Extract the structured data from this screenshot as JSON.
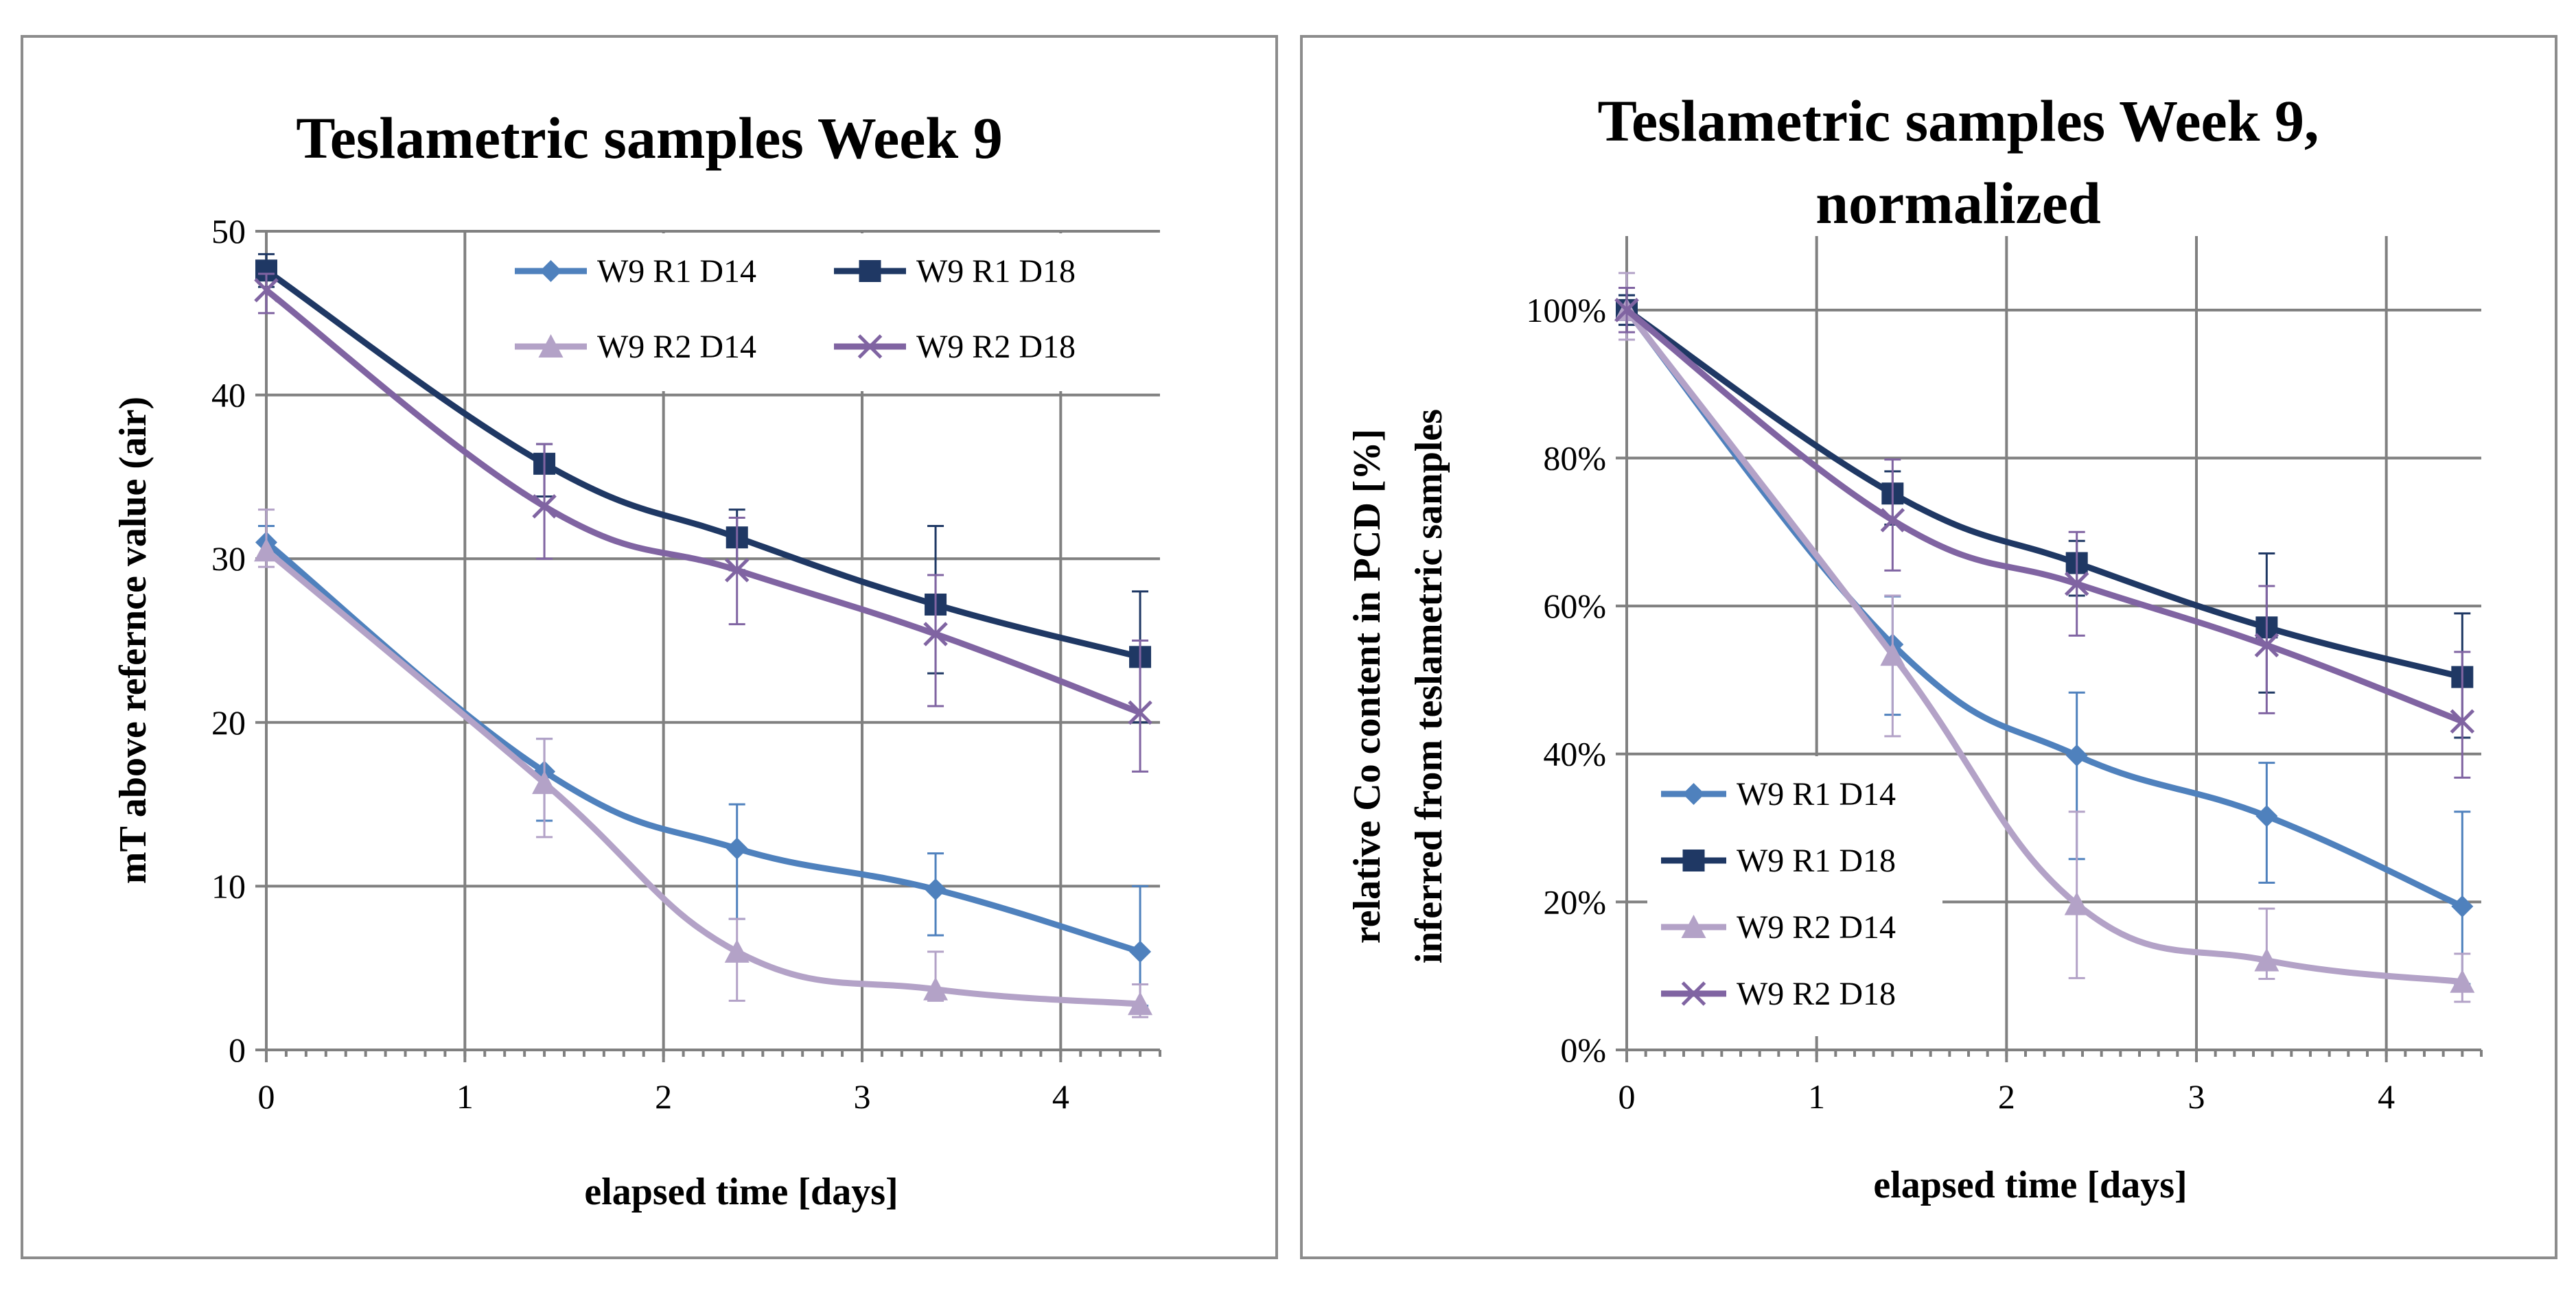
{
  "chart_data": [
    {
      "type": "line",
      "title": "Teslametric samples Week 9",
      "xlabel": "elapsed time [days]",
      "ylabel": "mT above refernce value (air)",
      "xlim": [
        0,
        4.5
      ],
      "ylim": [
        0,
        50
      ],
      "x_ticks": [
        "0",
        "1",
        "2",
        "3",
        "4"
      ],
      "y_ticks": [
        "0",
        "10",
        "20",
        "30",
        "40",
        "50"
      ],
      "grid": true,
      "legend_position": "top-right",
      "series": [
        {
          "name": "W9 R1 D14",
          "color": "#4f81bd",
          "marker": "diamond",
          "x": [
            0,
            1.4,
            2.37,
            3.37,
            4.4
          ],
          "y": [
            31,
            17,
            12.3,
            9.8,
            6
          ],
          "err_lo": [
            1,
            3,
            4.3,
            2.8,
            3.3
          ],
          "err_hi": [
            1,
            2,
            2.7,
            2.2,
            4
          ]
        },
        {
          "name": "W9 R1 D18",
          "color": "#1f3864",
          "marker": "square",
          "x": [
            0,
            1.4,
            2.37,
            3.37,
            4.4
          ],
          "y": [
            47.6,
            35.8,
            31.3,
            27.2,
            24
          ],
          "err_lo": [
            1,
            2,
            2,
            4.2,
            4
          ],
          "err_hi": [
            1,
            1.2,
            1.7,
            4.8,
            4
          ]
        },
        {
          "name": "W9 R2 D14",
          "color": "#b3a2c7",
          "marker": "triangle",
          "x": [
            0,
            1.4,
            2.37,
            3.37,
            4.4
          ],
          "y": [
            30.5,
            16.3,
            6,
            3.7,
            2.8
          ],
          "err_lo": [
            1,
            3.3,
            3,
            0.7,
            0.8
          ],
          "err_hi": [
            2.5,
            2.7,
            2,
            2.3,
            1.2
          ]
        },
        {
          "name": "W9 R2 D18",
          "color": "#8064a2",
          "marker": "x",
          "x": [
            0,
            1.4,
            2.37,
            3.37,
            4.4
          ],
          "y": [
            46.4,
            33.2,
            29.3,
            25.4,
            20.6
          ],
          "err_lo": [
            1.4,
            3.2,
            3.3,
            4.4,
            3.6
          ],
          "err_hi": [
            1,
            3.8,
            3.2,
            3.6,
            4.4
          ]
        }
      ]
    },
    {
      "type": "line",
      "title": "Teslametric samples Week 9, normalized",
      "title_lines": [
        "Teslametric samples Week 9,",
        "normalized"
      ],
      "xlabel": "elapsed time [days]",
      "ylabel_lines": [
        "relative Co content in PCD [%]",
        "inferred from teslametric samples"
      ],
      "xlim": [
        0,
        4.5
      ],
      "ylim": [
        0,
        110
      ],
      "x_ticks": [
        "0",
        "1",
        "2",
        "3",
        "4"
      ],
      "y_ticks": [
        "0%",
        "20%",
        "40%",
        "60%",
        "80%",
        "100%"
      ],
      "grid": true,
      "legend_position": "bottom-left",
      "series": [
        {
          "name": "W9 R1 D14",
          "color": "#4f81bd",
          "marker": "diamond",
          "x": [
            0,
            1.4,
            2.37,
            3.37,
            4.4
          ],
          "y": [
            100,
            54.8,
            39.8,
            31.6,
            19.4
          ],
          "err_lo": [
            2,
            9.5,
            14,
            9,
            10.5
          ],
          "err_hi": [
            2,
            6.5,
            8.5,
            7.2,
            12.8
          ]
        },
        {
          "name": "W9 R1 D18",
          "color": "#1f3864",
          "marker": "square",
          "x": [
            0,
            1.4,
            2.37,
            3.37,
            4.4
          ],
          "y": [
            100,
            75.2,
            65.8,
            57.1,
            50.4
          ],
          "err_lo": [
            2,
            4.2,
            4.4,
            8.8,
            8.2
          ],
          "err_hi": [
            2,
            3,
            3,
            10,
            8.6
          ]
        },
        {
          "name": "W9 R2 D14",
          "color": "#b3a2c7",
          "marker": "triangle",
          "x": [
            0,
            1.4,
            2.37,
            3.37,
            4.4
          ],
          "y": [
            100,
            53.4,
            19.7,
            12.1,
            9.2
          ],
          "err_lo": [
            4,
            11,
            10,
            2.5,
            2.7
          ],
          "err_hi": [
            5,
            8,
            12.5,
            7,
            3.8
          ]
        },
        {
          "name": "W9 R2 D18",
          "color": "#8064a2",
          "marker": "x",
          "x": [
            0,
            1.4,
            2.37,
            3.37,
            4.4
          ],
          "y": [
            100,
            71.6,
            63,
            54.7,
            44.4
          ],
          "err_lo": [
            3,
            6.8,
            7,
            9.2,
            7.6
          ],
          "err_hi": [
            3,
            8.2,
            7,
            8,
            9.4
          ]
        }
      ]
    }
  ]
}
